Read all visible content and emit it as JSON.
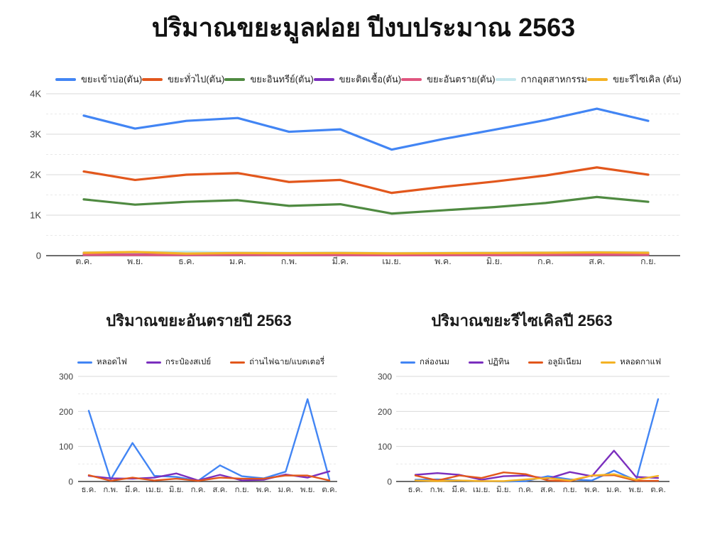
{
  "page_title": "ปริมาณขยะมูลฝอย ปีงบประมาณ 2563",
  "chart_data": [
    {
      "id": "main",
      "type": "line",
      "title": "ปริมาณขยะมูลฝอย ปีงบประมาณ 2563",
      "legend_position": "top",
      "grid": true,
      "ylim": [
        0,
        4000
      ],
      "yticks": [
        {
          "value": 0,
          "label": "0"
        },
        {
          "value": 1000,
          "label": "1K"
        },
        {
          "value": 2000,
          "label": "2K"
        },
        {
          "value": 3000,
          "label": "3K"
        },
        {
          "value": 4000,
          "label": "4K"
        }
      ],
      "categories": [
        "ต.ค.",
        "พ.ย.",
        "ธ.ค.",
        "ม.ค.",
        "ก.พ.",
        "มี.ค.",
        "เม.ย.",
        "พ.ค.",
        "มิ.ย.",
        "ก.ค.",
        "ส.ค.",
        "ก.ย."
      ],
      "series": [
        {
          "name": "ขยะเข้าบ่อ(ตัน)",
          "color": "#4285F4",
          "values": [
            3460,
            3140,
            3330,
            3400,
            3060,
            3120,
            2620,
            2880,
            3110,
            3350,
            3630,
            3330
          ]
        },
        {
          "name": "ขยะทั่วไป(ตัน)",
          "color": "#E2571C",
          "values": [
            2080,
            1870,
            2000,
            2040,
            1820,
            1870,
            1550,
            1700,
            1830,
            1980,
            2180,
            2000
          ]
        },
        {
          "name": "ขยะอินทรีย์(ตัน)",
          "color": "#4F8A41",
          "values": [
            1390,
            1260,
            1330,
            1370,
            1230,
            1270,
            1040,
            1120,
            1200,
            1300,
            1450,
            1330
          ]
        },
        {
          "name": "ขยะติดเชื้อ(ตัน)",
          "color": "#7B2FBE",
          "values": [
            35,
            30,
            30,
            35,
            30,
            30,
            25,
            30,
            30,
            35,
            40,
            35
          ]
        },
        {
          "name": "ขยะอันตราย(ตัน)",
          "color": "#E0557F",
          "values": [
            22,
            18,
            18,
            22,
            18,
            18,
            12,
            16,
            18,
            22,
            24,
            22
          ]
        },
        {
          "name": "กากอุตสาหกรรม",
          "color": "#C5E8EE",
          "values": [
            80,
            85,
            95,
            75,
            70,
            75,
            65,
            70,
            75,
            80,
            90,
            85
          ]
        },
        {
          "name": "ขยะรีไซเคิล (ตัน)",
          "color": "#F4B224",
          "values": [
            70,
            90,
            50,
            65,
            60,
            65,
            55,
            60,
            65,
            70,
            80,
            70
          ]
        }
      ]
    },
    {
      "id": "hazard",
      "type": "line",
      "title": "ปริมาณขยะอันตรายปี 2563",
      "legend_position": "top",
      "grid": true,
      "ylim": [
        0,
        300
      ],
      "yticks": [
        {
          "value": 0,
          "label": "0"
        },
        {
          "value": 100,
          "label": "100"
        },
        {
          "value": 200,
          "label": "200"
        },
        {
          "value": 300,
          "label": "300"
        }
      ],
      "categories": [
        "ธ.ค.",
        "ก.พ.",
        "มี.ค.",
        "เม.ย.",
        "มิ.ย.",
        "ก.ค.",
        "ส.ค.",
        "ก.ย.",
        "พ.ค.",
        "ม.ค.",
        "พ.ย.",
        "ต.ค."
      ],
      "series": [
        {
          "name": "หลอดไฟ",
          "color": "#4285F4",
          "values": [
            202,
            5,
            110,
            16,
            13,
            2,
            46,
            15,
            9,
            28,
            235,
            6
          ]
        },
        {
          "name": "กระป๋องสเปย์",
          "color": "#7B2FBE",
          "values": [
            16,
            9,
            8,
            11,
            23,
            3,
            19,
            3,
            5,
            20,
            11,
            29
          ]
        },
        {
          "name": "ถ่านไฟฉาย/แบตเตอรี่",
          "color": "#E2571C",
          "values": [
            18,
            2,
            11,
            3,
            8,
            2,
            11,
            8,
            8,
            17,
            17,
            3
          ]
        }
      ]
    },
    {
      "id": "recycle",
      "type": "line",
      "title": "ปริมาณขยะรีไซเคิลปี 2563",
      "legend_position": "top",
      "grid": true,
      "ylim": [
        0,
        300
      ],
      "yticks": [
        {
          "value": 0,
          "label": "0"
        },
        {
          "value": 100,
          "label": "100"
        },
        {
          "value": 200,
          "label": "200"
        },
        {
          "value": 300,
          "label": "300"
        }
      ],
      "categories": [
        "ธ.ค.",
        "ก.พ.",
        "มี.ค.",
        "เม.ย.",
        "มิ.ย.",
        "ก.ค.",
        "ส.ค.",
        "ก.ย.",
        "พ.ค.",
        "ม.ค.",
        "พ.ย.",
        "ต.ค."
      ],
      "series": [
        {
          "name": "กล่องนม",
          "color": "#4285F4",
          "values": [
            5,
            6,
            3,
            1,
            0,
            1,
            15,
            6,
            3,
            31,
            3,
            235
          ]
        },
        {
          "name": "ปฏิทิน",
          "color": "#7B2FBE",
          "values": [
            19,
            24,
            19,
            5,
            15,
            17,
            8,
            27,
            15,
            88,
            13,
            10
          ]
        },
        {
          "name": "อลูมิเนียม",
          "color": "#E2571C",
          "values": [
            17,
            3,
            17,
            10,
            26,
            21,
            3,
            1,
            17,
            18,
            2,
            2
          ]
        },
        {
          "name": "หลอดกาแฟ",
          "color": "#F4B224",
          "values": [
            3,
            1,
            3,
            1,
            1,
            6,
            10,
            3,
            17,
            21,
            5,
            16
          ]
        }
      ]
    }
  ]
}
